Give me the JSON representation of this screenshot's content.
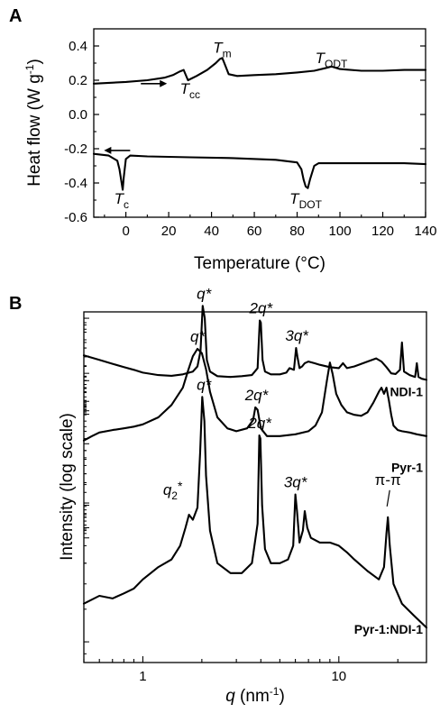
{
  "chart_data": [
    {
      "type": "line",
      "panel_label": "A",
      "xlabel": "Temperature (°C)",
      "ylabel_text": "Heat flow (W g",
      "ylabel_exp": "-1",
      "ylabel_close": ")",
      "xlim": [
        -15,
        140
      ],
      "ylim": [
        -0.6,
        0.5
      ],
      "x_ticks": [
        0,
        20,
        40,
        60,
        80,
        100,
        120,
        140
      ],
      "y_ticks": [
        -0.6,
        -0.4,
        -0.2,
        0.0,
        0.2,
        0.4
      ],
      "y_tick_labels": [
        "-0.6",
        "-0.4",
        "-0.2",
        "0.0",
        "0.2",
        "0.4"
      ],
      "series": [
        {
          "id": "heating",
          "x": [
            -15,
            0,
            10,
            18,
            22,
            25,
            27,
            29,
            33,
            38,
            42,
            44,
            45,
            46,
            48,
            52,
            60,
            70,
            80,
            88,
            93,
            96,
            100,
            110,
            120,
            130,
            140
          ],
          "y": [
            0.18,
            0.19,
            0.2,
            0.215,
            0.23,
            0.25,
            0.26,
            0.2,
            0.225,
            0.26,
            0.3,
            0.325,
            0.33,
            0.3,
            0.235,
            0.225,
            0.23,
            0.235,
            0.245,
            0.255,
            0.27,
            0.28,
            0.265,
            0.255,
            0.255,
            0.26,
            0.26
          ]
        },
        {
          "id": "cooling",
          "x": [
            -15,
            -8,
            -4,
            -3,
            -2,
            -1.5,
            -1,
            0,
            2,
            10,
            30,
            50,
            70,
            80,
            82,
            83,
            84,
            85,
            86,
            88,
            90,
            100,
            110,
            120,
            130,
            140
          ],
          "y": [
            -0.23,
            -0.24,
            -0.27,
            -0.32,
            -0.4,
            -0.44,
            -0.37,
            -0.26,
            -0.24,
            -0.245,
            -0.25,
            -0.255,
            -0.265,
            -0.28,
            -0.32,
            -0.38,
            -0.42,
            -0.43,
            -0.38,
            -0.3,
            -0.285,
            -0.285,
            -0.285,
            -0.285,
            -0.285,
            -0.29
          ]
        }
      ],
      "annotations": [
        {
          "main": "T",
          "sub": "m",
          "x": 45,
          "y": 0.36
        },
        {
          "main": "T",
          "sub": "cc",
          "x": 30,
          "y": 0.12
        },
        {
          "main": "T",
          "sub": "ODT",
          "x": 96,
          "y": 0.3
        },
        {
          "main": "T",
          "sub": "c",
          "x": -2,
          "y": -0.52
        },
        {
          "main": "T",
          "sub": "DOT",
          "x": 84,
          "y": -0.52
        }
      ],
      "arrows": [
        {
          "direction": "right",
          "x": 7,
          "y": 0.18
        },
        {
          "direction": "left",
          "x": 2,
          "y": -0.21
        }
      ]
    },
    {
      "type": "line",
      "panel_label": "B",
      "xlabel_main": "q",
      "xlabel_rest": " (nm",
      "xlabel_exp": "-1",
      "xlabel_close": ")",
      "ylabel": "Intensity (log scale)",
      "x_scale": "log",
      "xlim": [
        0.5,
        28
      ],
      "x_ticks": [
        1,
        10
      ],
      "x_tick_labels": [
        "1",
        "10"
      ],
      "y_scale": "log",
      "series": [
        {
          "name": "NDI-1",
          "x": [
            0.5,
            0.6,
            0.7,
            0.8,
            0.9,
            1.0,
            1.2,
            1.4,
            1.6,
            1.8,
            1.9,
            1.97,
            2.02,
            2.07,
            2.12,
            2.2,
            2.4,
            2.8,
            3.2,
            3.6,
            3.85,
            3.95,
            4.0,
            4.08,
            4.2,
            4.5,
            5.0,
            5.4,
            5.6,
            5.9,
            6.05,
            6.15,
            6.3,
            6.5,
            6.7,
            7.0,
            7.5,
            8.0,
            9.0,
            10.0,
            10.5,
            11.0,
            12.0,
            14.0,
            15.5,
            16.5,
            17.5,
            18.5,
            19.5,
            20.5,
            21.0,
            21.5,
            23.0,
            24.5,
            25.0,
            25.5,
            26.5,
            28.0
          ],
          "y": [
            1.55,
            1.4,
            1.28,
            1.18,
            1.1,
            1.02,
            0.95,
            0.93,
            0.97,
            1.05,
            1.2,
            1.7,
            3.6,
            3.0,
            1.4,
            1.05,
            0.92,
            0.9,
            0.92,
            0.95,
            1.15,
            2.9,
            2.8,
            1.4,
            1.05,
            0.97,
            0.97,
            1.02,
            1.15,
            1.1,
            1.8,
            1.5,
            1.15,
            1.2,
            1.3,
            1.35,
            1.3,
            1.25,
            1.18,
            1.15,
            1.3,
            1.15,
            1.2,
            1.35,
            1.45,
            1.35,
            1.18,
            1.0,
            0.98,
            1.1,
            2.0,
            1.05,
            0.95,
            0.9,
            1.3,
            0.9,
            0.85,
            0.82
          ]
        },
        {
          "name": "Pyr-1",
          "x": [
            0.5,
            0.55,
            0.6,
            0.7,
            0.8,
            0.9,
            1.0,
            1.2,
            1.4,
            1.6,
            1.7,
            1.8,
            1.9,
            2.0,
            2.1,
            2.2,
            2.4,
            2.7,
            3.0,
            3.4,
            3.65,
            3.75,
            3.85,
            4.0,
            4.3,
            5.0,
            6.0,
            7.0,
            7.6,
            8.2,
            8.7,
            9.0,
            9.3,
            9.7,
            10.3,
            11.0,
            12.0,
            13.0,
            14.0,
            15.0,
            16.0,
            16.5,
            17.0,
            17.5,
            18.0,
            18.5,
            19.0,
            20.0,
            21.0,
            23.0,
            25.0,
            28.0
          ],
          "y": [
            1.05,
            1.12,
            1.18,
            1.22,
            1.25,
            1.28,
            1.32,
            1.45,
            1.7,
            2.1,
            2.55,
            3.0,
            3.25,
            3.1,
            2.6,
            2.0,
            1.45,
            1.25,
            1.2,
            1.25,
            1.4,
            1.65,
            1.6,
            1.25,
            1.12,
            1.12,
            1.15,
            1.2,
            1.3,
            1.55,
            2.3,
            2.8,
            2.45,
            1.95,
            1.7,
            1.55,
            1.5,
            1.48,
            1.55,
            1.75,
            2.0,
            2.1,
            1.95,
            2.1,
            1.8,
            1.5,
            1.3,
            1.22,
            1.2,
            1.18,
            1.15,
            1.12
          ]
        },
        {
          "name": "Pyr-1:NDI-1",
          "x": [
            0.5,
            0.6,
            0.7,
            0.8,
            0.9,
            1.0,
            1.2,
            1.4,
            1.55,
            1.65,
            1.72,
            1.8,
            1.9,
            1.96,
            2.01,
            2.06,
            2.1,
            2.2,
            2.4,
            2.8,
            3.2,
            3.6,
            3.85,
            3.93,
            3.98,
            4.06,
            4.2,
            4.5,
            5.0,
            5.5,
            5.85,
            6.0,
            6.12,
            6.3,
            6.55,
            6.7,
            6.9,
            7.2,
            8.0,
            9.0,
            10.0,
            11.0,
            12.0,
            14.0,
            16.0,
            17.0,
            17.5,
            17.8,
            18.2,
            19.0,
            21.0,
            24.0,
            28.0
          ],
          "y": [
            0.42,
            0.45,
            0.44,
            0.46,
            0.48,
            0.52,
            0.58,
            0.62,
            0.7,
            0.82,
            0.92,
            0.88,
            0.98,
            1.6,
            2.6,
            2.1,
            1.3,
            0.8,
            0.6,
            0.55,
            0.55,
            0.6,
            0.85,
            1.85,
            1.8,
            1.0,
            0.68,
            0.6,
            0.6,
            0.62,
            0.7,
            1.1,
            0.95,
            0.72,
            0.8,
            0.95,
            0.82,
            0.75,
            0.72,
            0.72,
            0.7,
            0.66,
            0.62,
            0.56,
            0.52,
            0.58,
            0.78,
            0.9,
            0.7,
            0.5,
            0.42,
            0.38,
            0.34
          ]
        }
      ],
      "annotations": [
        {
          "main": "q*",
          "x": 2.05,
          "series": "NDI-1"
        },
        {
          "main": "2q*",
          "x": 4.0,
          "series": "NDI-1"
        },
        {
          "main": "3q*",
          "x": 6.1,
          "series": "NDI-1"
        },
        {
          "main": "q*",
          "x": 1.9,
          "series": "Pyr-1"
        },
        {
          "main": "2q*",
          "x": 3.8,
          "series": "Pyr-1"
        },
        {
          "main": "q*",
          "x": 2.05,
          "series": "Pyr-1:NDI-1"
        },
        {
          "main": "2q*",
          "x": 3.95,
          "series": "Pyr-1:NDI-1"
        },
        {
          "main": "3q*",
          "x": 6.0,
          "series": "Pyr-1:NDI-1"
        },
        {
          "main": "q",
          "sub": "2",
          "sup": "*",
          "x": 1.72,
          "series": "Pyr-1:NDI-1"
        },
        {
          "main": "π-π",
          "x": 17.8,
          "series": "Pyr-1:NDI-1"
        }
      ]
    }
  ]
}
